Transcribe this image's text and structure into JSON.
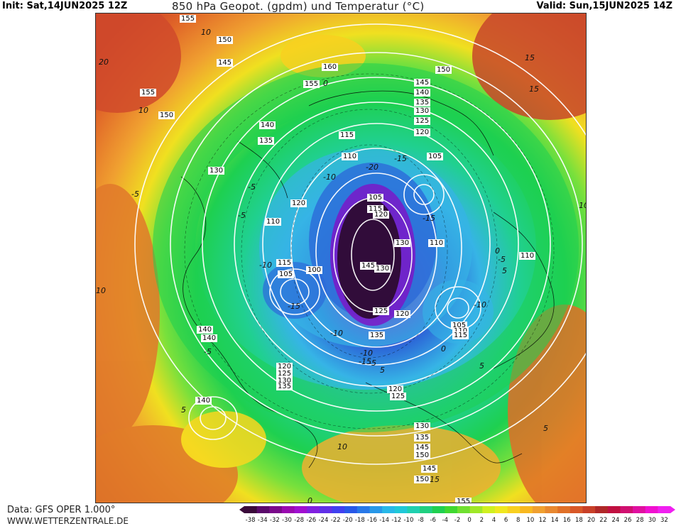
{
  "header": {
    "init_label": "Init: Sat,14JUN2025 12Z",
    "title": "850 hPa Geopot. (gpdm) und Temperatur (°C)",
    "valid_label": "Valid: Sun,15JUN2025 14Z"
  },
  "footer": {
    "data_source": "Data: GFS OPER 1.000°",
    "website": "WWW.WETTERZENTRALE.DE"
  },
  "colors": {
    "very_cold": "#2a0a2a",
    "purple": "#7a18c8",
    "blue": "#2c6ad8",
    "light_blue": "#36b4e6",
    "green": "#1ed050",
    "light_green": "#78e03c",
    "yellow": "#f0e020",
    "orange": "#f0a030",
    "dark_orange": "#e06428",
    "red": "#c83c28",
    "contour": "#ffffff",
    "coast": "#000000"
  },
  "legend": {
    "ticks": [
      "-38",
      "-34",
      "-32",
      "-30",
      "-28",
      "-26",
      "-24",
      "-22",
      "-20",
      "-18",
      "-16",
      "-14",
      "-12",
      "-10",
      "-8",
      "-6",
      "-4",
      "-2",
      "0",
      "2",
      "4",
      "6",
      "8",
      "10",
      "12",
      "14",
      "16",
      "18",
      "20",
      "22",
      "24",
      "26",
      "28",
      "30",
      "32"
    ],
    "swatch_colors": [
      "#3a0a3a",
      "#5a0a6a",
      "#7a0a8a",
      "#9a0ab0",
      "#a010d0",
      "#8020e0",
      "#6030e8",
      "#4040f0",
      "#2858e8",
      "#2878e8",
      "#2898e8",
      "#28b8e8",
      "#20c8d8",
      "#20d0b0",
      "#20d080",
      "#20d050",
      "#40d830",
      "#70e030",
      "#a0e828",
      "#d0f020",
      "#f0e820",
      "#f8d020",
      "#f8b820",
      "#f0a030",
      "#e88830",
      "#e07028",
      "#d85828",
      "#c84028",
      "#b02828",
      "#c01040",
      "#d01070",
      "#e010a0",
      "#f010d0",
      "#f020f0"
    ]
  },
  "map_labels": {
    "geopotential": [
      "155",
      "150",
      "145",
      "155",
      "150",
      "160",
      "155",
      "150",
      "145",
      "140",
      "135",
      "130",
      "125",
      "120",
      "140",
      "135",
      "115",
      "130",
      "110",
      "105",
      "105",
      "115",
      "120",
      "120",
      "110",
      "115",
      "100",
      "130",
      "110",
      "110",
      "105",
      "100",
      "145",
      "130",
      "125",
      "135",
      "120",
      "105",
      "110",
      "115",
      "140",
      "140",
      "120",
      "125",
      "130",
      "135",
      "120",
      "125",
      "140",
      "130",
      "135",
      "145",
      "150",
      "145",
      "150",
      "155"
    ],
    "temperature": [
      "10",
      "15",
      "20",
      "10",
      "-5",
      "0",
      "-10",
      "-15",
      "-20",
      "-5",
      "-10",
      "-15",
      "10",
      "15",
      "5",
      "-5",
      "10",
      "5",
      "0",
      "-5",
      "-15",
      "-10",
      "5",
      "0",
      "5",
      "-5",
      "-10",
      "-15",
      "0",
      "15",
      "10",
      "-10",
      "5",
      "-5"
    ]
  }
}
